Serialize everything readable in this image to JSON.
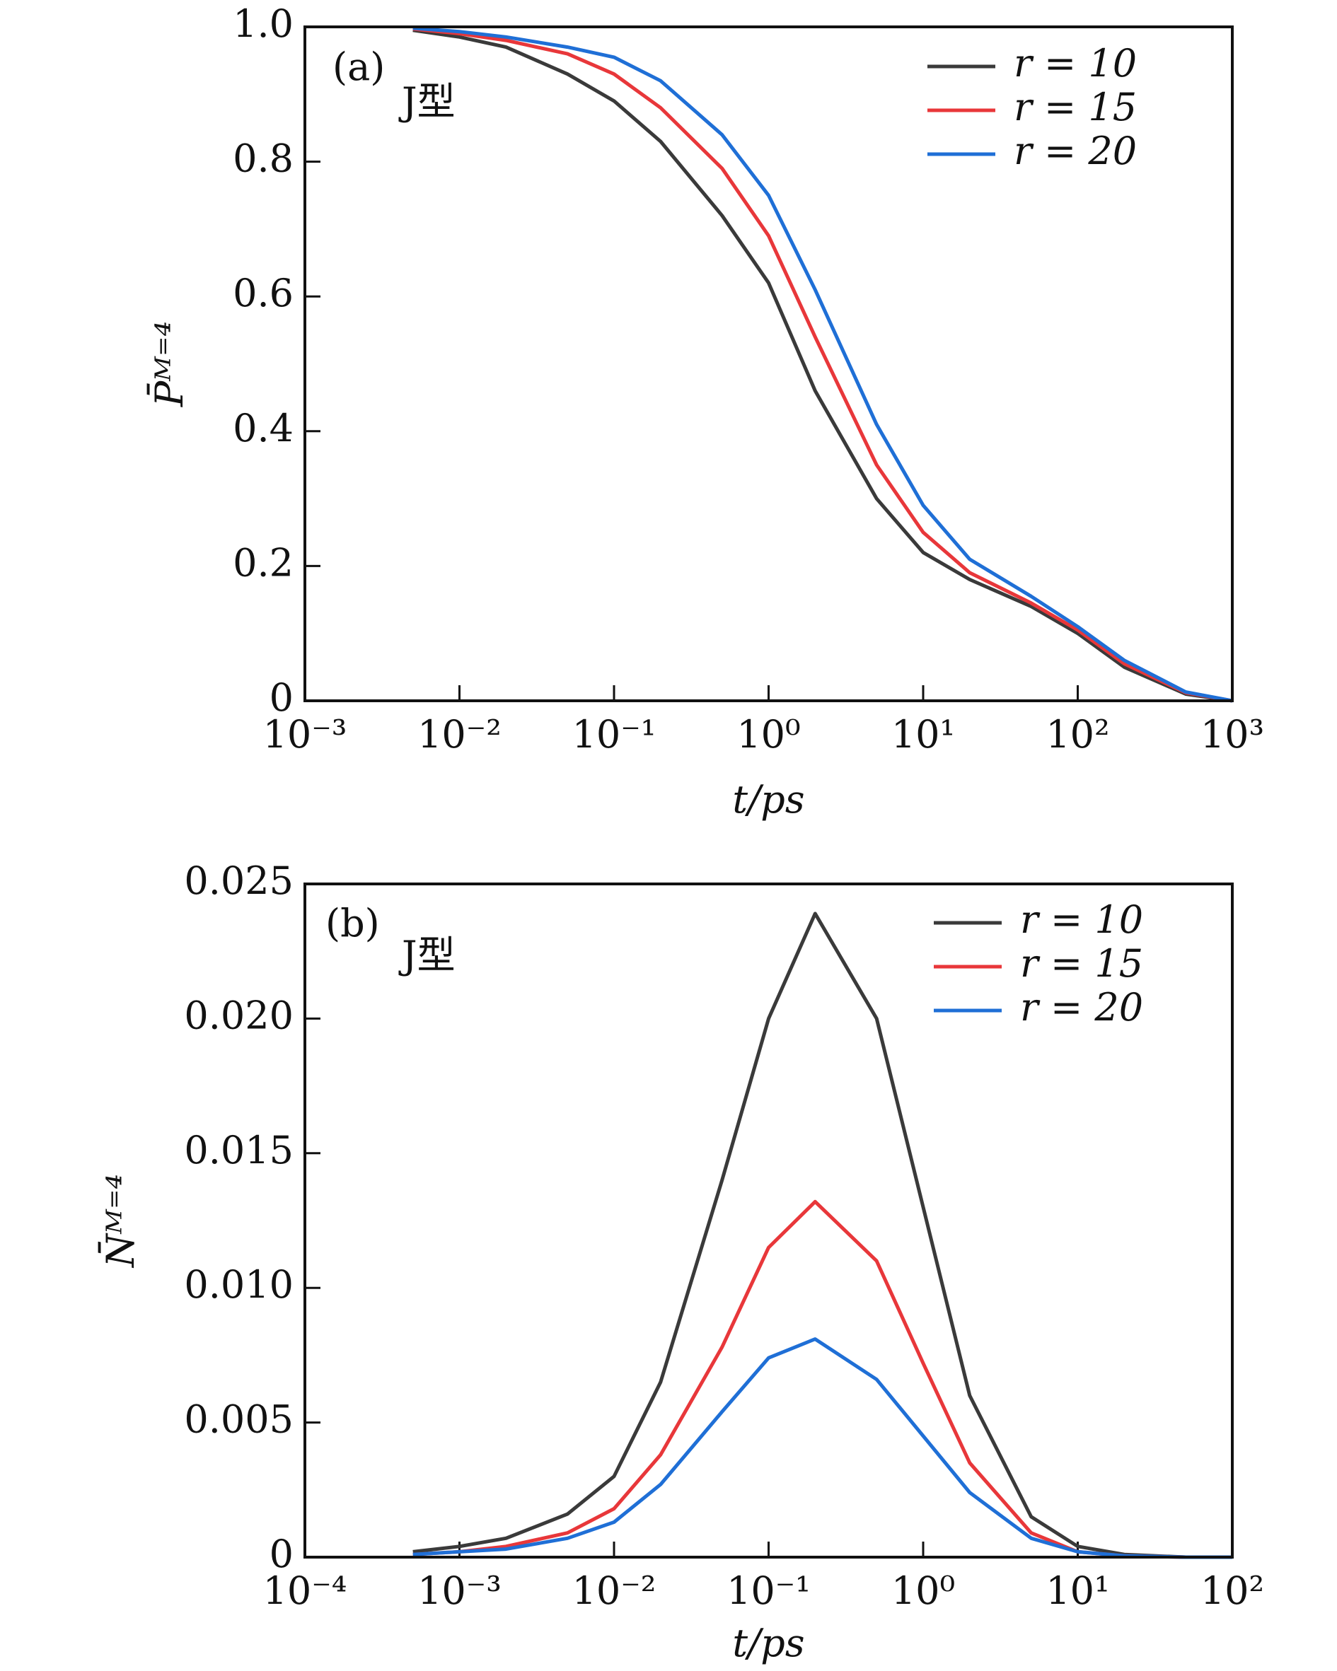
{
  "chart_data": [
    {
      "type": "line",
      "annotations": [
        "(a)",
        "J型"
      ],
      "xlabel": "t/ps",
      "ylabel": "P̄ᴹ⁼⁴",
      "xscale": "log",
      "xlim": [
        0.001,
        1000
      ],
      "xticks": [
        {
          "value": 0.001,
          "label": "10⁻³"
        },
        {
          "value": 0.01,
          "label": "10⁻²"
        },
        {
          "value": 0.1,
          "label": "10⁻¹"
        },
        {
          "value": 1,
          "label": "10⁰"
        },
        {
          "value": 10,
          "label": "10¹"
        },
        {
          "value": 100,
          "label": "10²"
        },
        {
          "value": 1000,
          "label": "10³"
        }
      ],
      "ylim": [
        0,
        1
      ],
      "yticks": [
        0,
        0.2,
        0.4,
        0.6,
        0.8,
        {
          "value": 1,
          "label": "1.0"
        }
      ],
      "x": [
        0.005,
        0.01,
        0.02,
        0.05,
        0.1,
        0.2,
        0.5,
        1,
        2,
        5,
        10,
        20,
        50,
        100,
        200,
        500,
        1000
      ],
      "series": [
        {
          "name": "r = 10",
          "color": "#3a3a3a",
          "values": [
            0.995,
            0.985,
            0.97,
            0.93,
            0.89,
            0.83,
            0.72,
            0.62,
            0.46,
            0.3,
            0.22,
            0.18,
            0.14,
            0.1,
            0.05,
            0.01,
            0
          ]
        },
        {
          "name": "r = 15",
          "color": "#e8373a",
          "values": [
            0.997,
            0.99,
            0.98,
            0.96,
            0.93,
            0.88,
            0.79,
            0.69,
            0.54,
            0.35,
            0.25,
            0.19,
            0.145,
            0.105,
            0.055,
            0.012,
            0
          ]
        },
        {
          "name": "r = 20",
          "color": "#1f6fd6",
          "values": [
            0.998,
            0.993,
            0.985,
            0.97,
            0.955,
            0.92,
            0.84,
            0.75,
            0.61,
            0.41,
            0.29,
            0.21,
            0.155,
            0.11,
            0.06,
            0.013,
            0
          ]
        }
      ]
    },
    {
      "type": "line",
      "annotations": [
        "(b)",
        "J型"
      ],
      "xlabel": "t/ps",
      "ylabel": "N̄ᴹ⁼⁴",
      "xscale": "log",
      "xlim": [
        0.0001,
        100
      ],
      "xticks": [
        {
          "value": 0.0001,
          "label": "10⁻⁴"
        },
        {
          "value": 0.001,
          "label": "10⁻³"
        },
        {
          "value": 0.01,
          "label": "10⁻²"
        },
        {
          "value": 0.1,
          "label": "10⁻¹"
        },
        {
          "value": 1,
          "label": "10⁰"
        },
        {
          "value": 10,
          "label": "10¹"
        },
        {
          "value": 100,
          "label": "10²"
        }
      ],
      "ylim": [
        0,
        0.025
      ],
      "yticks": [
        0,
        0.005,
        {
          "value": 0.01,
          "label": "0.010"
        },
        0.015,
        {
          "value": 0.02,
          "label": "0.020"
        },
        0.025
      ],
      "x": [
        0.0005,
        0.001,
        0.002,
        0.005,
        0.01,
        0.02,
        0.05,
        0.1,
        0.2,
        0.5,
        1,
        2,
        5,
        10,
        20,
        50,
        100
      ],
      "series": [
        {
          "name": "r = 10",
          "color": "#3a3a3a",
          "values": [
            0.0002,
            0.0004,
            0.0007,
            0.0016,
            0.003,
            0.0065,
            0.014,
            0.02,
            0.0239,
            0.02,
            0.013,
            0.006,
            0.0015,
            0.0004,
            0.0001,
            0,
            0
          ]
        },
        {
          "name": "r = 15",
          "color": "#e8373a",
          "values": [
            0.0001,
            0.0002,
            0.0004,
            0.0009,
            0.0018,
            0.0038,
            0.0078,
            0.0115,
            0.0132,
            0.011,
            0.0072,
            0.0035,
            0.0009,
            0.0002,
            5e-05,
            0,
            0
          ]
        },
        {
          "name": "r = 20",
          "color": "#1f6fd6",
          "values": [
            0.0001,
            0.0002,
            0.0003,
            0.0007,
            0.0013,
            0.0027,
            0.0054,
            0.0074,
            0.0081,
            0.0066,
            0.0045,
            0.0024,
            0.0007,
            0.0002,
            5e-05,
            0,
            0
          ]
        }
      ]
    }
  ]
}
